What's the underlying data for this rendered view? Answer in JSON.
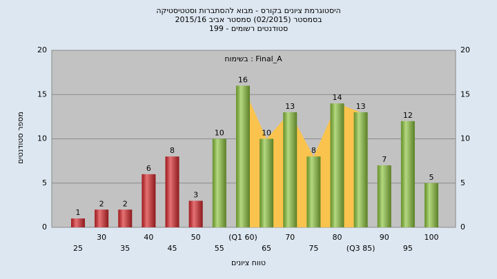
{
  "chart_data": {
    "type": "bar",
    "title": [
      "היסטוגרמת ציונים בקורס - מבוא להסתברות וסטטיסטיקה",
      "בסמסטר (02/2015)  סמסטר אביב 2015/16",
      "סטודנטים רשומים - 199"
    ],
    "annotation": "בשימוח : Final_A",
    "x_label": "טווח ציונים",
    "y_label": "מספר סטודנטים",
    "categories": [
      "25",
      "30",
      "35",
      "40",
      "45",
      "50",
      "55",
      "(Q1 60)",
      "65",
      "70",
      "75",
      "80",
      "(Q3 85)",
      "90",
      "95",
      "100"
    ],
    "values": [
      1,
      2,
      2,
      6,
      8,
      3,
      10,
      16,
      10,
      13,
      8,
      14,
      13,
      7,
      12,
      5
    ],
    "colors": [
      "#d8262a",
      "#d8262a",
      "#d8262a",
      "#d8262a",
      "#d8262a",
      "#d8262a",
      "#8cc43c",
      "#8cc43c",
      "#8cc43c",
      "#8cc43c",
      "#8cc43c",
      "#8cc43c",
      "#8cc43c",
      "#8cc43c",
      "#8cc43c",
      "#8cc43c"
    ],
    "highlight_color": "#f9c34d",
    "ylim": [
      0,
      20
    ],
    "yticks": [
      0,
      5,
      10,
      15,
      20
    ],
    "grid": true
  }
}
